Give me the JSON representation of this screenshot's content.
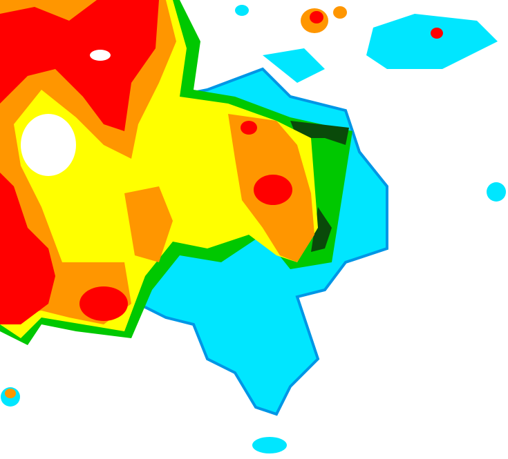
{
  "map": {
    "type": "precipitation radar composite",
    "background": "#ffffff",
    "intensity_colors": {
      "light_cyan": "#00e6ff",
      "blue": "#0096e6",
      "dark_green": "#0a4a0a",
      "green": "#00c800",
      "yellow": "#ffff00",
      "orange": "#ff9600",
      "red": "#ff0000"
    }
  }
}
